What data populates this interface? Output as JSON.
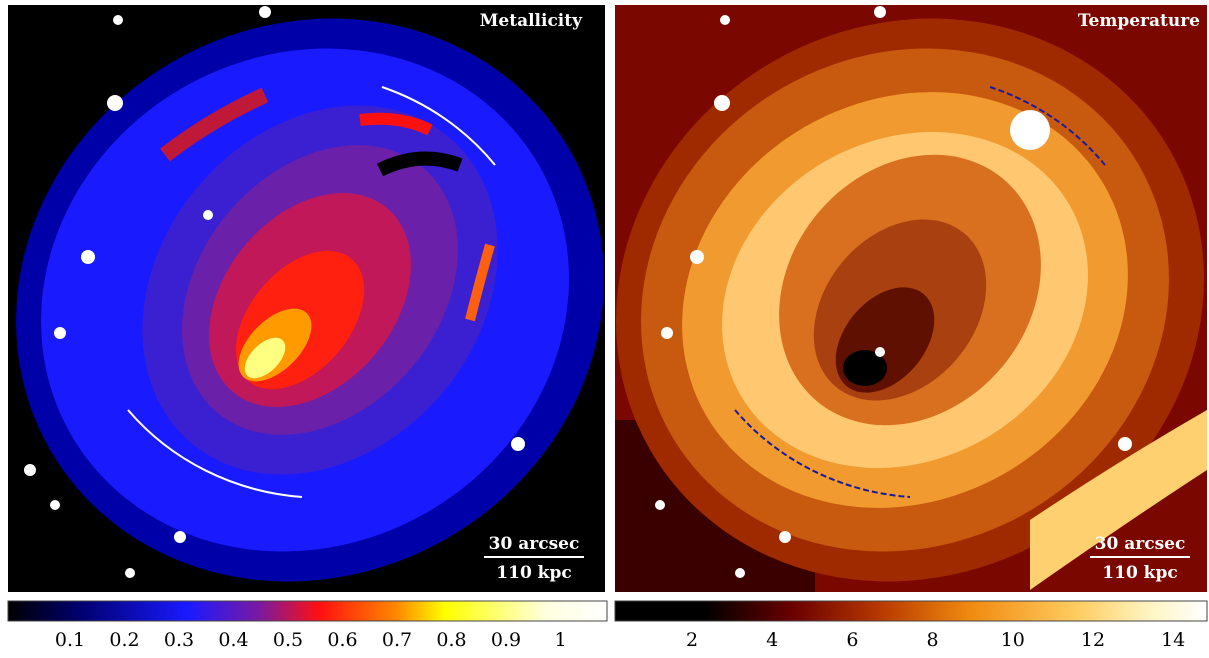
{
  "panels": [
    {
      "title": "Metallicity",
      "scale_bar": {
        "angular": "30 arcsec",
        "physical": "110 kpc"
      },
      "colorbar": {
        "ticks": [
          0.1,
          0.2,
          0.3,
          0.4,
          0.5,
          0.6,
          0.7,
          0.8,
          0.9,
          1
        ]
      }
    },
    {
      "title": "Temperature",
      "scale_bar": {
        "angular": "30 arcsec",
        "physical": "110 kpc"
      },
      "colorbar": {
        "ticks": [
          2,
          4,
          6,
          8,
          10,
          12,
          14
        ]
      }
    }
  ]
}
